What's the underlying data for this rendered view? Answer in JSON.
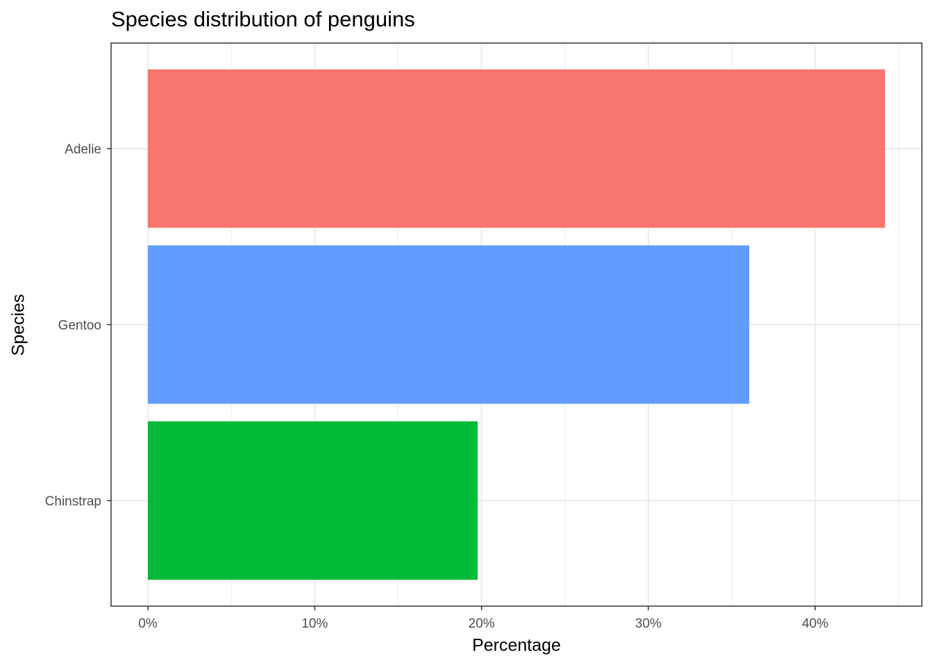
{
  "chart_data": {
    "type": "barh",
    "title": "Species distribution of penguins",
    "x_label": "Percentage",
    "y_label": "Species",
    "categories": [
      "Adelie",
      "Gentoo",
      "Chinstrap"
    ],
    "values": [
      44.19,
      36.05,
      19.77
    ],
    "colors": [
      "#F8766D",
      "#619CFF",
      "#00BA38"
    ],
    "xlim": [
      -2.21,
      46.4
    ],
    "xticks": [
      {
        "value": 0,
        "label": "0%"
      },
      {
        "value": 10,
        "label": "10%"
      },
      {
        "value": 20,
        "label": "20%"
      },
      {
        "value": 30,
        "label": "30%"
      },
      {
        "value": 40,
        "label": "40%"
      }
    ],
    "xminorticks": [
      5,
      15,
      25,
      35,
      45
    ],
    "grid": true
  }
}
